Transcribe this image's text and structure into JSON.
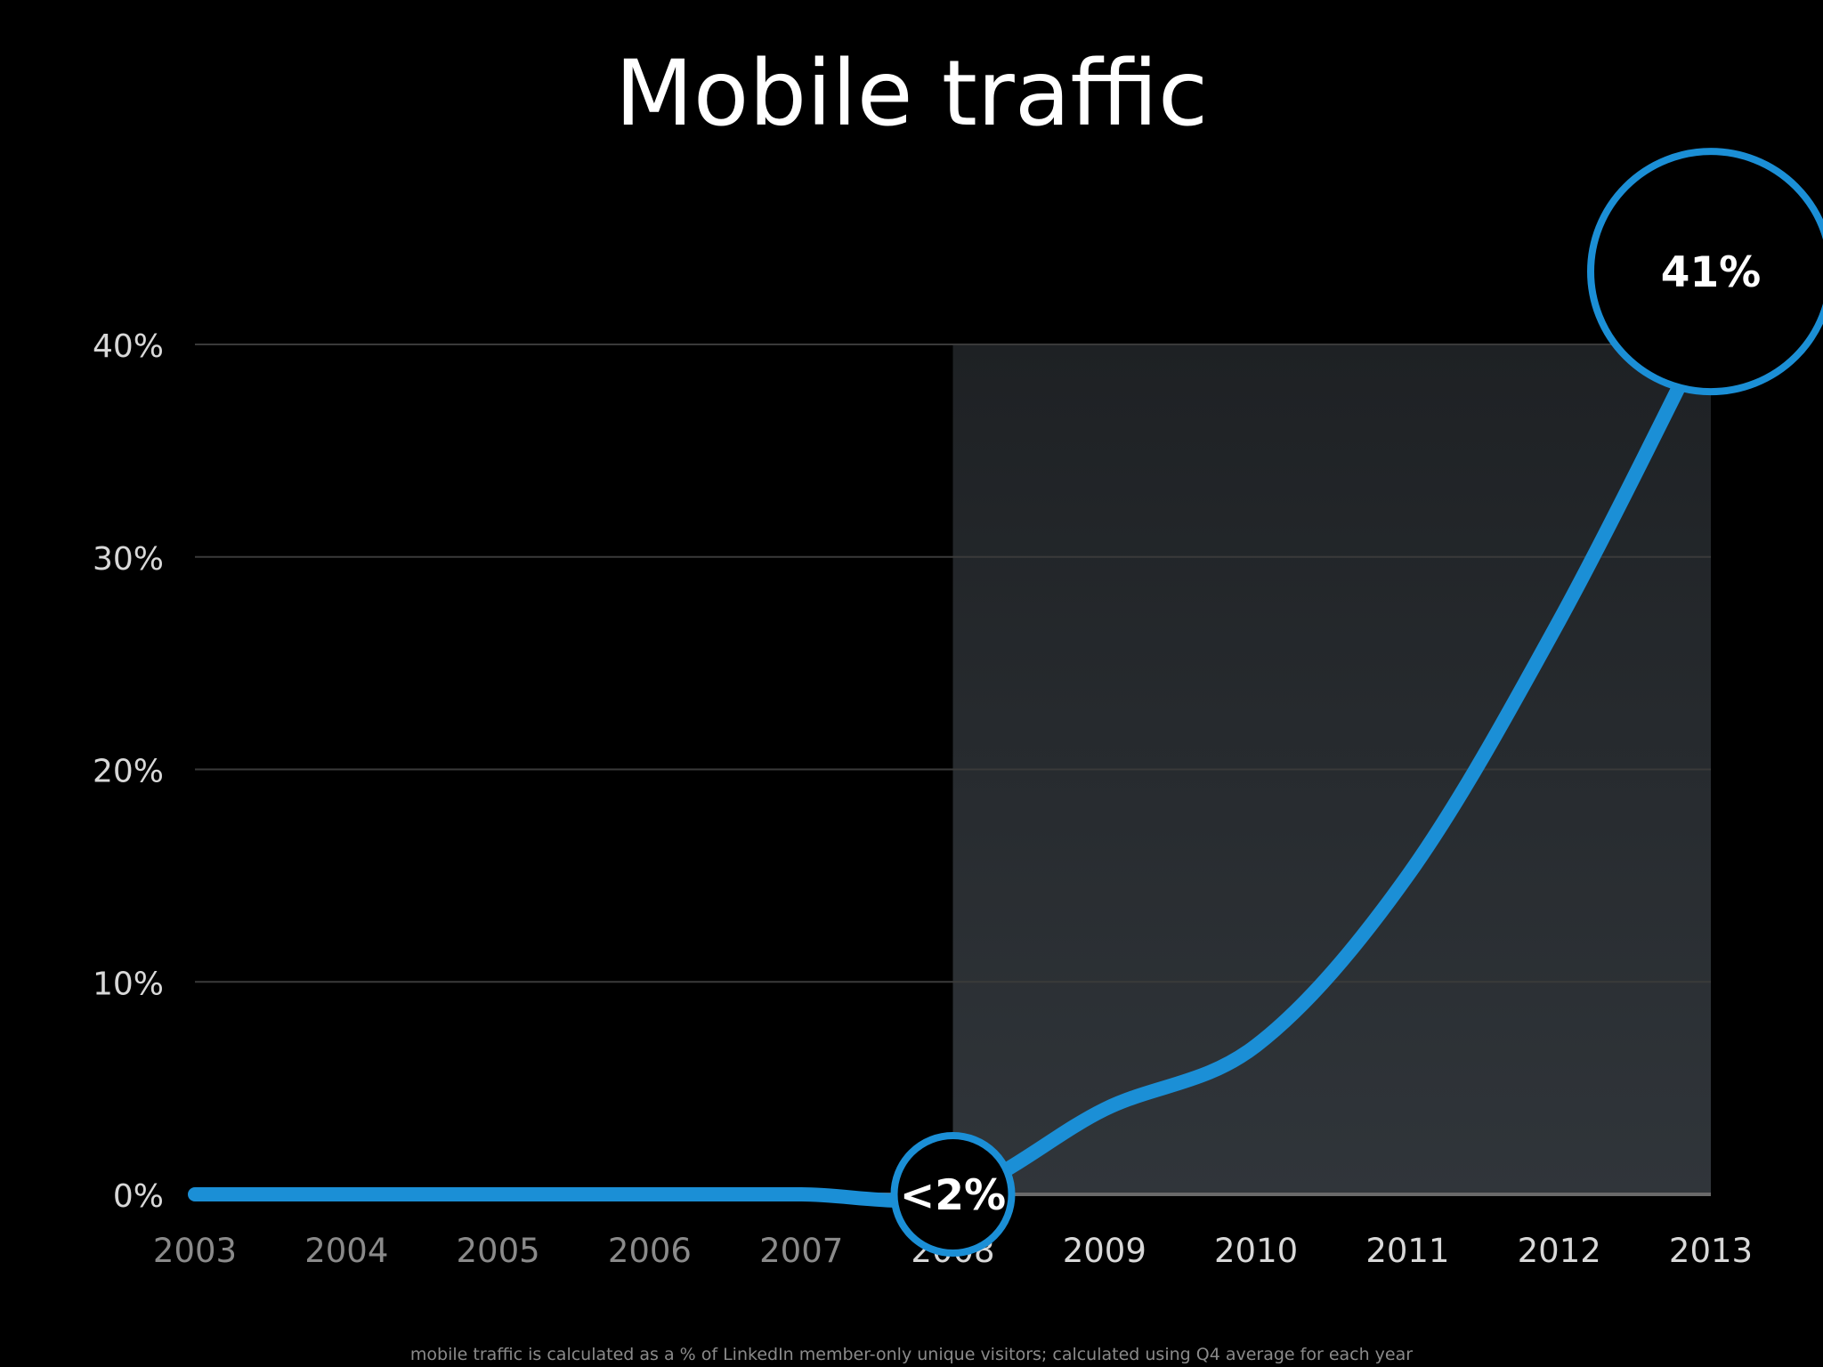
{
  "chart_data": {
    "type": "line",
    "title": "Mobile traffic",
    "footnote": "mobile traffic is calculated as a % of LinkedIn member-only unique visitors; calculated using Q4 average for each year",
    "xlabel": "",
    "ylabel": "",
    "categories": [
      "2003",
      "2004",
      "2005",
      "2006",
      "2007",
      "2008",
      "2009",
      "2010",
      "2011",
      "2012",
      "2013"
    ],
    "series": [
      {
        "name": "Mobile traffic",
        "values": [
          0,
          0,
          0,
          0,
          0,
          0,
          4,
          7,
          15,
          27,
          41
        ],
        "color": "#1b8fd6"
      }
    ],
    "yticks": [
      "0%",
      "10%",
      "20%",
      "30%",
      "40%"
    ],
    "ytick_values": [
      0,
      10,
      20,
      30,
      40
    ],
    "ylim": [
      0,
      40
    ],
    "grid": true,
    "highlight_from": "2008",
    "highlight_to": "2013",
    "annotations": [
      {
        "category": "2008",
        "value": 0,
        "label": "<2%"
      },
      {
        "category": "2013",
        "value": 41,
        "label": "41%"
      }
    ]
  },
  "colors": {
    "background": "#000000",
    "line": "#1b8fd6",
    "grid": "#3a3a3a",
    "highlight_top": "#1e2124",
    "highlight_bottom": "#30353a",
    "text": "#ffffff",
    "dim_label": "#8a8a8a",
    "axis_label": "#d8d8d8"
  }
}
